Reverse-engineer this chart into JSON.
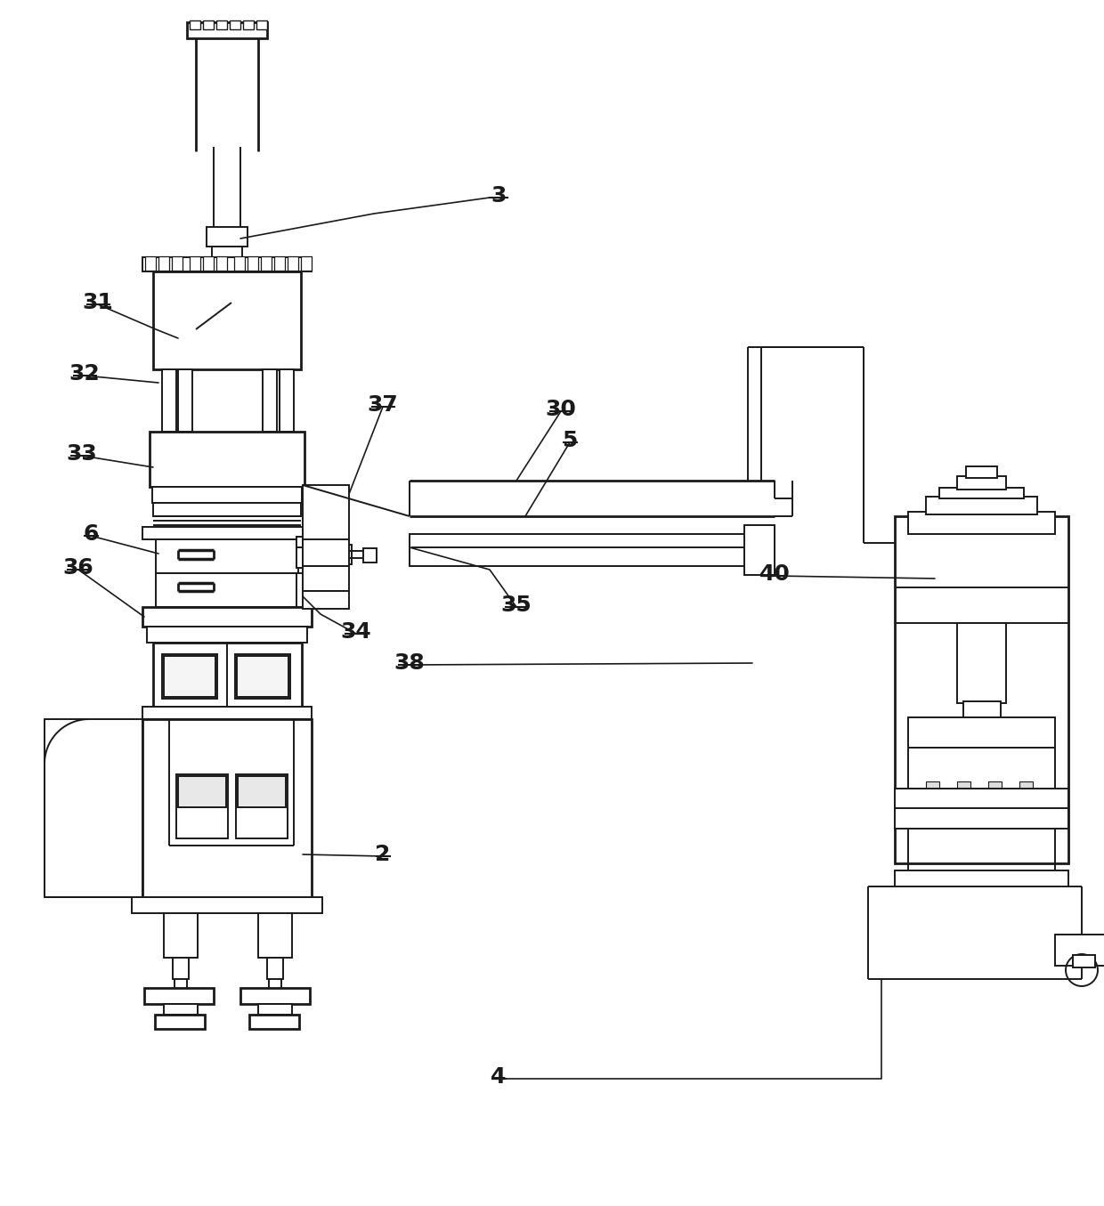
{
  "bg_color": "#ffffff",
  "lc": "#1a1a1a",
  "lw": 1.4,
  "tlw": 2.0,
  "figsize": [
    12.4,
    13.55
  ],
  "dpi": 100
}
